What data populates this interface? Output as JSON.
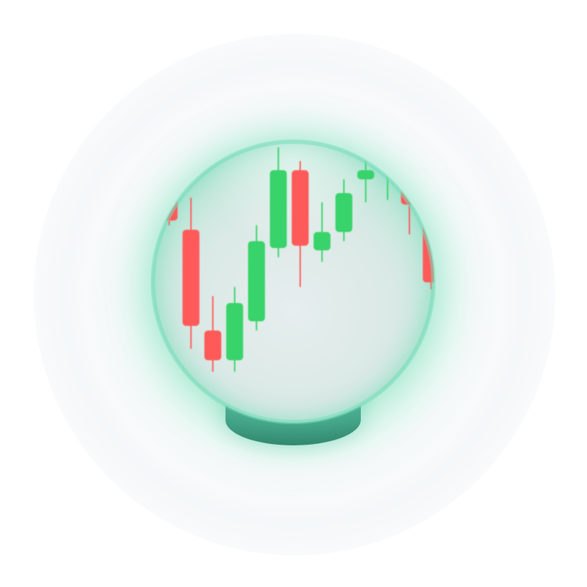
{
  "colors": {
    "up": "#37d36a",
    "down": "#ff5a5a",
    "glow": "#5fd6ae",
    "base": "#3f9a80",
    "sphere": "#dfeceb"
  },
  "icon": "crystal-ball-candlestick-icon",
  "candles": [
    {
      "dir": "down",
      "open": 0.86,
      "close": 0.76,
      "high": 0.88,
      "low": 0.74
    },
    {
      "dir": "down",
      "open": 0.72,
      "close": 0.3,
      "high": 0.86,
      "low": 0.2
    },
    {
      "dir": "down",
      "open": 0.28,
      "close": 0.15,
      "high": 0.43,
      "low": 0.1
    },
    {
      "dir": "up",
      "open": 0.15,
      "close": 0.4,
      "high": 0.47,
      "low": 0.1
    },
    {
      "dir": "up",
      "open": 0.32,
      "close": 0.67,
      "high": 0.74,
      "low": 0.28
    },
    {
      "dir": "up",
      "open": 0.64,
      "close": 0.98,
      "high": 1.08,
      "low": 0.6
    },
    {
      "dir": "down",
      "open": 0.98,
      "close": 0.65,
      "high": 1.02,
      "low": 0.47
    },
    {
      "dir": "up",
      "open": 0.63,
      "close": 0.71,
      "high": 0.84,
      "low": 0.58
    },
    {
      "dir": "up",
      "open": 0.71,
      "close": 0.88,
      "high": 0.94,
      "low": 0.67
    },
    {
      "dir": "up",
      "open": 0.94,
      "close": 0.98,
      "high": 1.08,
      "low": 0.84
    },
    {
      "dir": "up",
      "open": 1.03,
      "close": 1.07,
      "high": 1.16,
      "low": 0.85
    },
    {
      "dir": "down",
      "open": 0.98,
      "close": 0.83,
      "high": 1.05,
      "low": 0.7
    },
    {
      "dir": "down",
      "open": 0.79,
      "close": 0.49,
      "high": 0.83,
      "low": 0.46
    }
  ]
}
